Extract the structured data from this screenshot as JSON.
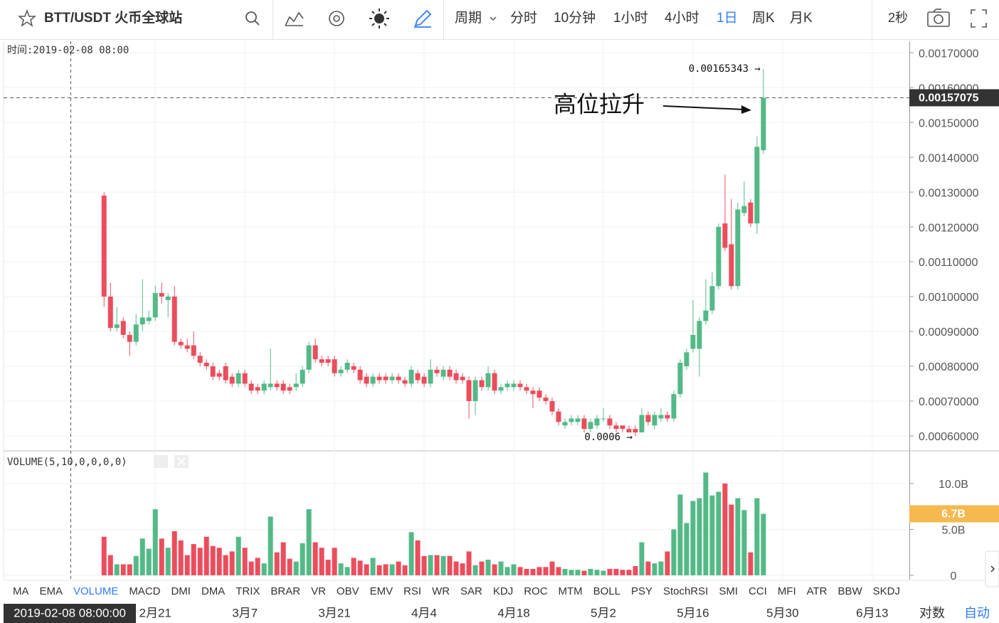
{
  "toolbar": {
    "symbol": "BTT/USDT 火币全球站",
    "period": "周期",
    "intervals": [
      "分时",
      "10分钟",
      "1小时",
      "4小时",
      "1日",
      "周K",
      "月K"
    ],
    "active_interval": 4,
    "refresh": "2秒"
  },
  "chart_data": [
    {
      "type": "candlestick",
      "header": "时间:2019-02-08 08:00",
      "up_color": "#53b987",
      "down_color": "#eb4d5c",
      "open": [
        0.00129,
        0.001,
        0.00091,
        0.00093,
        0.00089,
        0.00087,
        0.00092,
        0.00093,
        0.00094,
        0.00101,
        0.00099,
        0.001,
        0.00087,
        0.00086,
        0.00086,
        0.00083,
        0.00081,
        0.0008,
        0.00078,
        0.0008,
        0.00077,
        0.00075,
        0.00078,
        0.00075,
        0.00074,
        0.00073,
        0.00074,
        0.00075,
        0.00075,
        0.00074,
        0.00074,
        0.00075,
        0.00079,
        0.00086,
        0.00082,
        0.00082,
        0.00082,
        0.00078,
        0.00079,
        0.0008,
        0.00079,
        0.00077,
        0.00075,
        0.00077,
        0.00077,
        0.00076,
        0.00077,
        0.00076,
        0.00075,
        0.00078,
        0.00077,
        0.00075,
        0.00079,
        0.00077,
        0.00079,
        0.00078,
        0.00077,
        0.00076,
        0.0007,
        0.00076,
        0.00074,
        0.00078,
        0.00073,
        0.00074,
        0.00074,
        0.00075,
        0.00074,
        0.00073,
        0.00073,
        0.00071,
        0.0007,
        0.00067,
        0.00063,
        0.00064,
        0.00064,
        0.00065,
        0.00062,
        0.00063,
        0.00065,
        0.00065,
        0.00063,
        0.00063,
        0.00062,
        0.00062,
        0.00061,
        0.00066,
        0.00063,
        0.00065,
        0.00066,
        0.00065,
        0.00072,
        0.0008,
        0.00085,
        0.00085,
        0.00093,
        0.00096,
        0.00103,
        0.00121,
        0.00115,
        0.00103,
        0.00124,
        0.00127,
        0.00121,
        0.00142
      ],
      "close": [
        0.001,
        0.00091,
        0.00092,
        0.00089,
        0.00087,
        0.00092,
        0.00094,
        0.00094,
        0.00101,
        0.001,
        0.001,
        0.00087,
        0.00086,
        0.00085,
        0.00083,
        0.00081,
        0.0008,
        0.00077,
        0.00077,
        0.00076,
        0.00075,
        0.00078,
        0.00075,
        0.00073,
        0.00073,
        0.00075,
        0.00075,
        0.00074,
        0.00073,
        0.00073,
        0.00075,
        0.00079,
        0.00086,
        0.00082,
        0.00081,
        0.00081,
        0.00078,
        0.00079,
        0.00081,
        0.00079,
        0.00076,
        0.00075,
        0.00077,
        0.00076,
        0.00076,
        0.00077,
        0.00076,
        0.00075,
        0.00079,
        0.00076,
        0.00075,
        0.00079,
        0.00078,
        0.00079,
        0.00077,
        0.00076,
        0.00076,
        0.0007,
        0.00076,
        0.00074,
        0.00078,
        0.00073,
        0.00074,
        0.00075,
        0.00075,
        0.00074,
        0.00073,
        0.00072,
        0.00071,
        0.0007,
        0.00067,
        0.00064,
        0.00064,
        0.00065,
        0.00065,
        0.00062,
        0.00064,
        0.00065,
        0.00065,
        0.00063,
        0.00062,
        0.00062,
        0.00061,
        0.00061,
        0.00066,
        0.00064,
        0.00066,
        0.00066,
        0.00065,
        0.00072,
        0.00081,
        0.00084,
        0.00089,
        0.00093,
        0.00096,
        0.00103,
        0.0012,
        0.00114,
        0.00103,
        0.00125,
        0.00126,
        0.00121,
        0.00143,
        0.00157075
      ],
      "high": [
        0.0013,
        0.00104,
        0.00097,
        0.00094,
        0.0009,
        0.00095,
        0.00105,
        0.00096,
        0.00103,
        0.00104,
        0.00101,
        0.00103,
        0.00088,
        0.00088,
        0.0009,
        0.00084,
        0.00082,
        0.00081,
        0.00079,
        0.00081,
        0.00078,
        0.00079,
        0.00079,
        0.00076,
        0.00075,
        0.00076,
        0.00085,
        0.00076,
        0.00076,
        0.00075,
        0.00078,
        0.0008,
        0.00087,
        0.00088,
        0.00083,
        0.00083,
        0.00083,
        0.0008,
        0.00082,
        0.00081,
        0.0008,
        0.00078,
        0.00078,
        0.00078,
        0.00078,
        0.00078,
        0.00078,
        0.00077,
        0.0008,
        0.00079,
        0.00078,
        0.00082,
        0.0008,
        0.0008,
        0.0008,
        0.00079,
        0.00078,
        0.00077,
        0.00077,
        0.00077,
        0.0008,
        0.00079,
        0.00075,
        0.00076,
        0.00076,
        0.00076,
        0.00075,
        0.00074,
        0.00074,
        0.00072,
        0.00071,
        0.00068,
        0.00065,
        0.00066,
        0.00066,
        0.00066,
        0.00065,
        0.00066,
        0.00068,
        0.00066,
        0.00064,
        0.00063,
        0.00063,
        0.00063,
        0.00068,
        0.00067,
        0.00067,
        0.00068,
        0.00067,
        0.00073,
        0.00082,
        0.00085,
        0.00099,
        0.00094,
        0.00105,
        0.00107,
        0.00121,
        0.00135,
        0.00128,
        0.00127,
        0.00133,
        0.00128,
        0.00146,
        0.00165343
      ],
      "low": [
        0.00097,
        0.0009,
        0.0009,
        0.00088,
        0.00083,
        0.00086,
        0.0009,
        0.00092,
        0.00093,
        0.00098,
        0.00094,
        0.00086,
        0.00085,
        0.00084,
        0.00082,
        0.0008,
        0.00079,
        0.00076,
        0.00076,
        0.00075,
        0.00074,
        0.00074,
        0.00074,
        0.00072,
        0.00072,
        0.00072,
        0.00073,
        0.00073,
        0.00072,
        0.00072,
        0.00073,
        0.00074,
        0.00078,
        0.00081,
        0.0008,
        0.0008,
        0.00077,
        0.00077,
        0.00078,
        0.00078,
        0.00075,
        0.00074,
        0.00074,
        0.00075,
        0.00075,
        0.00075,
        0.00075,
        0.00074,
        0.00074,
        0.00075,
        0.00074,
        0.00074,
        0.00077,
        0.00076,
        0.00076,
        0.00075,
        0.00075,
        0.00065,
        0.00066,
        0.00073,
        0.00073,
        0.00072,
        0.00072,
        0.00073,
        0.00073,
        0.00073,
        0.00072,
        0.00068,
        0.0007,
        0.00069,
        0.00066,
        0.00063,
        0.00062,
        0.00063,
        0.00063,
        0.00061,
        0.00061,
        0.00062,
        0.00064,
        0.00062,
        0.00061,
        0.00061,
        0.00061,
        0.0006,
        0.00061,
        0.00063,
        0.00062,
        0.00064,
        0.00064,
        0.00064,
        0.00071,
        0.00079,
        0.00084,
        0.00077,
        0.00092,
        0.00095,
        0.00102,
        0.00113,
        0.00102,
        0.00102,
        0.00123,
        0.0012,
        0.00118,
        0.00141
      ],
      "xlim": [
        -15.7,
        125.8
      ],
      "xticks": [
        {
          "value": 8,
          "label": "2月21"
        },
        {
          "value": 22,
          "label": "3月7"
        },
        {
          "value": 36,
          "label": "3月21"
        },
        {
          "value": 50,
          "label": "4月4"
        },
        {
          "value": 64,
          "label": "4月18"
        },
        {
          "value": 78,
          "label": "5月2"
        },
        {
          "value": 92,
          "label": "5月16"
        },
        {
          "value": 106,
          "label": "5月30"
        },
        {
          "value": 120,
          "label": "6月13"
        }
      ],
      "ylim": [
        0.000559,
        0.001733
      ],
      "yticks": [
        {
          "value": 0.0006,
          "label": "0.00060000"
        },
        {
          "value": 0.0007,
          "label": "0.00070000"
        },
        {
          "value": 0.0008,
          "label": "0.00080000"
        },
        {
          "value": 0.0009,
          "label": "0.00090000"
        },
        {
          "value": 0.001,
          "label": "0.00100000"
        },
        {
          "value": 0.0011,
          "label": "0.00110000"
        },
        {
          "value": 0.0012,
          "label": "0.00120000"
        },
        {
          "value": 0.0013,
          "label": "0.00130000"
        },
        {
          "value": 0.0014,
          "label": "0.00140000"
        },
        {
          "value": 0.0015,
          "label": "0.00150000"
        },
        {
          "value": 0.0016,
          "label": "0.00160000"
        },
        {
          "value": 0.0017,
          "label": "0.00170000"
        }
      ],
      "grid": true,
      "max_label": {
        "value": 0.00165343,
        "label": "0.00165343 →"
      },
      "min_label": {
        "value": 0.0006,
        "label": "0.0006 →"
      },
      "last_price": {
        "value": 0.00157075,
        "label": "0.00157075"
      },
      "annotation": "高位拉升"
    },
    {
      "type": "bar",
      "title": "VOLUME(5,10,0,0,0,0)",
      "values": [
        4.2,
        2.2,
        1.2,
        1.2,
        1.2,
        2.1,
        4.0,
        2.9,
        7.2,
        4.0,
        3.0,
        4.8,
        3.8,
        2.2,
        3.4,
        3.0,
        4.2,
        3.2,
        3.0,
        2.2,
        2.6,
        4.2,
        3.0,
        1.5,
        1.9,
        1.3,
        6.4,
        2.5,
        3.6,
        1.8,
        1.5,
        3.5,
        7.2,
        3.6,
        3.0,
        1.7,
        3.0,
        1.3,
        0.9,
        1.9,
        1.6,
        1.2,
        1.9,
        1.1,
        1.2,
        1.2,
        1.5,
        1.1,
        4.7,
        3.8,
        2.1,
        2.2,
        2.2,
        2.1,
        2.1,
        1.5,
        1.3,
        2.6,
        1.1,
        1.5,
        1.7,
        1.2,
        1.5,
        0.9,
        1.2,
        0.9,
        0.7,
        0.7,
        0.9,
        0.9,
        1.5,
        0.9,
        0.7,
        0.6,
        0.6,
        0.5,
        0.7,
        0.6,
        0.5,
        0.7,
        0.7,
        0.6,
        0.6,
        1.0,
        3.6,
        1.5,
        1.3,
        1.5,
        2.6,
        5.0,
        8.8,
        5.7,
        8.1,
        8.4,
        11.2,
        8.7,
        9.1,
        10.0,
        7.7,
        8.4,
        7.1,
        2.5,
        8.4,
        6.7
      ],
      "ylim": [
        -0.47,
        13.4
      ],
      "yticks": [
        {
          "value": 10,
          "label": "10.0B"
        },
        {
          "value": 5,
          "label": "5.0B"
        },
        0
      ],
      "current": {
        "value": 6.7,
        "label": "6.7B"
      },
      "tag_color": "#f5b94f"
    }
  ],
  "indicators": [
    "MA",
    "EMA",
    "VOLUME",
    "MACD",
    "DMI",
    "DMA",
    "TRIX",
    "BRAR",
    "VR",
    "OBV",
    "EMV",
    "RSI",
    "WR",
    "SAR",
    "KDJ",
    "ROC",
    "MTM",
    "BOLL",
    "PSY",
    "StochRSI",
    "SMI",
    "CCI",
    "MFI",
    "ATR",
    "BBW",
    "SKDJ"
  ],
  "active_indicator": 2,
  "footer": {
    "time": "2019-02-08 08:00:00",
    "log": "对数",
    "auto": "自动"
  }
}
